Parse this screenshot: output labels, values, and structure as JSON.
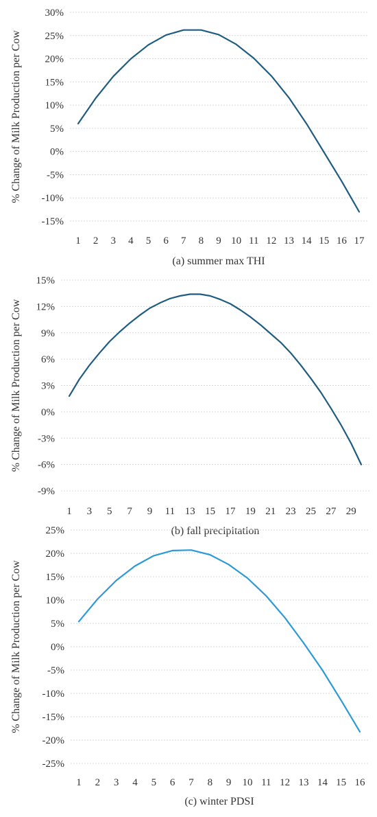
{
  "chart_data": [
    {
      "type": "line",
      "caption": "(a) summer max THI",
      "ylabel": "% Change of Milk Production per Cow",
      "x": [
        1,
        2,
        3,
        4,
        5,
        6,
        7,
        8,
        9,
        10,
        11,
        12,
        13,
        14,
        15,
        16,
        17
      ],
      "xticks": [
        "1",
        "2",
        "3",
        "4",
        "5",
        "6",
        "7",
        "8",
        "9",
        "10",
        "11",
        "12",
        "13",
        "14",
        "15",
        "16",
        "17"
      ],
      "ylim": [
        -15,
        30
      ],
      "yticks": [
        30,
        25,
        20,
        15,
        10,
        5,
        0,
        -5,
        -10,
        -15
      ],
      "ytick_labels": [
        "30%",
        "25%",
        "20%",
        "15%",
        "10%",
        "5%",
        "0%",
        "-5%",
        "-10%",
        "-15%"
      ],
      "series": [
        {
          "values": [
            6.0,
            11.5,
            16.2,
            20.0,
            23.0,
            25.1,
            26.2,
            26.2,
            25.2,
            23.1,
            20.1,
            16.3,
            11.6,
            6.0,
            -0.2,
            -6.4,
            -13.0
          ],
          "color": "#1f5c82"
        }
      ],
      "grid": true
    },
    {
      "type": "line",
      "caption": "(b) fall precipitation",
      "ylabel": "% Change of Milk Production per Cow",
      "x": [
        1,
        2,
        3,
        4,
        5,
        6,
        7,
        8,
        9,
        10,
        11,
        12,
        13,
        14,
        15,
        16,
        17,
        18,
        19,
        20,
        21,
        22,
        23,
        24,
        25,
        26,
        27,
        28,
        29,
        30
      ],
      "xticks": [
        "1",
        "3",
        "5",
        "7",
        "9",
        "11",
        "13",
        "15",
        "17",
        "19",
        "21",
        "23",
        "25",
        "27",
        "29"
      ],
      "ylim": [
        -9,
        15
      ],
      "yticks": [
        15,
        12,
        9,
        6,
        3,
        0,
        -3,
        -6,
        -9
      ],
      "ytick_labels": [
        "15%",
        "12%",
        "9%",
        "6%",
        "3%",
        "0%",
        "-3%",
        "-6%",
        "-9%"
      ],
      "series": [
        {
          "values": [
            1.8,
            3.7,
            5.3,
            6.7,
            8.0,
            9.1,
            10.1,
            11.0,
            11.8,
            12.4,
            12.9,
            13.2,
            13.4,
            13.4,
            13.2,
            12.8,
            12.3,
            11.6,
            10.8,
            9.9,
            8.9,
            7.9,
            6.7,
            5.3,
            3.8,
            2.2,
            0.4,
            -1.5,
            -3.6,
            -6.0
          ],
          "color": "#1f5c82"
        }
      ],
      "grid": true
    },
    {
      "type": "line",
      "caption": "(c) winter PDSI",
      "ylabel": "% Change of Milk Production per Cow",
      "x": [
        1,
        2,
        3,
        4,
        5,
        6,
        7,
        8,
        9,
        10,
        11,
        12,
        13,
        14,
        15,
        16
      ],
      "xticks": [
        "1",
        "2",
        "3",
        "4",
        "5",
        "6",
        "7",
        "8",
        "9",
        "10",
        "11",
        "12",
        "13",
        "14",
        "15",
        "16"
      ],
      "ylim": [
        -25,
        25
      ],
      "yticks": [
        25,
        20,
        15,
        10,
        5,
        0,
        -5,
        -10,
        -15,
        -20,
        -25
      ],
      "ytick_labels": [
        "25%",
        "20%",
        "15%",
        "10%",
        "5%",
        "0%",
        "-5%",
        "-10%",
        "-15%",
        "-20%",
        "-25%"
      ],
      "series": [
        {
          "values": [
            5.4,
            10.2,
            14.2,
            17.3,
            19.5,
            20.6,
            20.7,
            19.7,
            17.6,
            14.7,
            10.9,
            6.2,
            0.8,
            -5.0,
            -11.5,
            -18.2
          ],
          "color": "#2b9ad6"
        }
      ],
      "grid": true
    }
  ]
}
